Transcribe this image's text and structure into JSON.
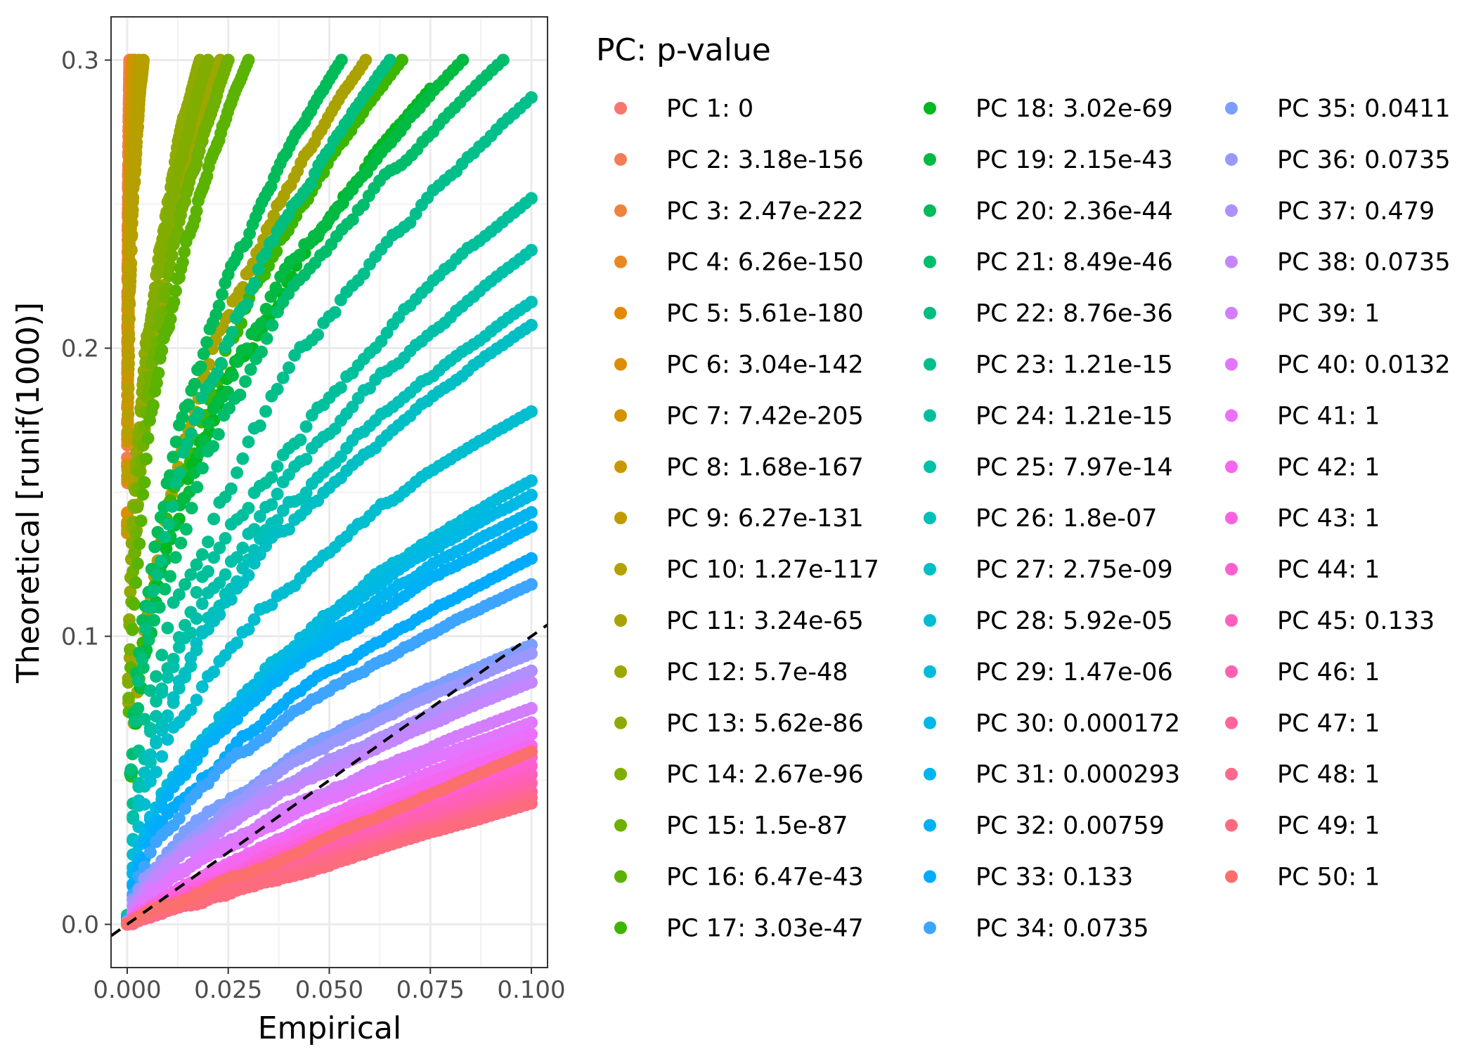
{
  "chart_data": {
    "type": "scatter",
    "xlabel": "Empirical",
    "ylabel": "Theoretical [runif(1000)]",
    "xlim": [
      -0.004,
      0.104
    ],
    "ylim": [
      -0.015,
      0.315
    ],
    "x_ticks": [
      0.0,
      0.025,
      0.05,
      0.075,
      0.1
    ],
    "x_tick_labels": [
      "0.000",
      "0.025",
      "0.050",
      "0.075",
      "0.100"
    ],
    "y_ticks": [
      0.0,
      0.1,
      0.2,
      0.3
    ],
    "y_tick_labels": [
      "0.0",
      "0.1",
      "0.2",
      "0.3"
    ],
    "grid": true,
    "reference_line": {
      "style": "dashed",
      "slope": 1,
      "intercept": 0,
      "color": "#000000"
    },
    "legend": {
      "title": "PC: p-value",
      "placement": "right"
    },
    "series": [
      {
        "name": "PC 1: 0",
        "color": "#F8766D",
        "end": [
          0.0006,
          0.3
        ],
        "curve": 0.18
      },
      {
        "name": "PC 2: 3.18e-156",
        "color": "#F47C56",
        "end": [
          0.0008,
          0.3
        ],
        "curve": 0.18
      },
      {
        "name": "PC 3: 2.47e-222",
        "color": "#EF823E",
        "end": [
          0.001,
          0.3
        ],
        "curve": 0.18
      },
      {
        "name": "PC 4: 6.26e-150",
        "color": "#E98720",
        "end": [
          0.0012,
          0.3
        ],
        "curve": 0.18
      },
      {
        "name": "PC 5: 5.61e-180",
        "color": "#E38900",
        "end": [
          0.0014,
          0.3
        ],
        "curve": 0.18
      },
      {
        "name": "PC 6: 3.04e-142",
        "color": "#DC8E00",
        "end": [
          0.0016,
          0.3
        ],
        "curve": 0.18
      },
      {
        "name": "PC 7: 7.42e-205",
        "color": "#D39200",
        "end": [
          0.0018,
          0.3
        ],
        "curve": 0.18
      },
      {
        "name": "PC 8: 1.68e-167",
        "color": "#CA9700",
        "end": [
          0.002,
          0.3
        ],
        "curve": 0.18
      },
      {
        "name": "PC 9: 6.27e-131",
        "color": "#C09B00",
        "end": [
          0.003,
          0.3
        ],
        "curve": 0.18
      },
      {
        "name": "PC 10: 1.27e-117",
        "color": "#B5A000",
        "end": [
          0.004,
          0.3
        ],
        "curve": 0.18
      },
      {
        "name": "PC 11: 3.24e-65",
        "color": "#AAA200",
        "end": [
          0.059,
          0.3
        ],
        "curve": 0.4
      },
      {
        "name": "PC 12: 5.7e-48",
        "color": "#9CA700",
        "end": [
          0.023,
          0.3
        ],
        "curve": 0.32
      },
      {
        "name": "PC 13: 5.62e-86",
        "color": "#8FAA00",
        "end": [
          0.018,
          0.3
        ],
        "curve": 0.3
      },
      {
        "name": "PC 14: 2.67e-96",
        "color": "#80AD00",
        "end": [
          0.02,
          0.3
        ],
        "curve": 0.3
      },
      {
        "name": "PC 15: 1.5e-87",
        "color": "#6FB000",
        "end": [
          0.025,
          0.3
        ],
        "curve": 0.32
      },
      {
        "name": "PC 16: 6.47e-43",
        "color": "#59B300",
        "end": [
          0.03,
          0.3
        ],
        "curve": 0.34
      },
      {
        "name": "PC 17: 3.03e-47",
        "color": "#3EB500",
        "end": [
          0.068,
          0.3
        ],
        "curve": 0.4
      },
      {
        "name": "PC 18: 3.02e-69",
        "color": "#00B81F",
        "end": [
          0.075,
          0.29
        ],
        "curve": 0.4
      },
      {
        "name": "PC 19: 2.15e-43",
        "color": "#00BA42",
        "end": [
          0.083,
          0.3
        ],
        "curve": 0.4
      },
      {
        "name": "PC 20: 2.36e-44",
        "color": "#00BB59",
        "end": [
          0.053,
          0.3
        ],
        "curve": 0.4
      },
      {
        "name": "PC 21: 8.49e-46",
        "color": "#00BD6C",
        "end": [
          0.093,
          0.3
        ],
        "curve": 0.4
      },
      {
        "name": "PC 22: 8.76e-36",
        "color": "#00BE7D",
        "end": [
          0.065,
          0.3
        ],
        "curve": 0.4
      },
      {
        "name": "PC 23: 1.21e-15",
        "color": "#00BF8D",
        "end": [
          0.1,
          0.287
        ],
        "curve": 0.45
      },
      {
        "name": "PC 24: 1.21e-15",
        "color": "#00C09C",
        "end": [
          0.1,
          0.252
        ],
        "curve": 0.45
      },
      {
        "name": "PC 25: 7.97e-14",
        "color": "#00C0AA",
        "end": [
          0.1,
          0.234
        ],
        "curve": 0.45
      },
      {
        "name": "PC 26: 1.8e-07",
        "color": "#00C0B8",
        "end": [
          0.1,
          0.216
        ],
        "curve": 0.45
      },
      {
        "name": "PC 27: 2.75e-09",
        "color": "#00BFC4",
        "end": [
          0.1,
          0.208
        ],
        "curve": 0.45
      },
      {
        "name": "PC 28: 5.92e-05",
        "color": "#00BDD0",
        "end": [
          0.1,
          0.178
        ],
        "curve": 0.45
      },
      {
        "name": "PC 29: 1.47e-06",
        "color": "#00BBDB",
        "end": [
          0.1,
          0.154
        ],
        "curve": 0.5
      },
      {
        "name": "PC 30: 0.000172",
        "color": "#00B8E5",
        "end": [
          0.1,
          0.149
        ],
        "curve": 0.5
      },
      {
        "name": "PC 31: 0.000293",
        "color": "#00B4EF",
        "end": [
          0.1,
          0.143
        ],
        "curve": 0.5
      },
      {
        "name": "PC 32: 0.00759",
        "color": "#00B0F6",
        "end": [
          0.1,
          0.138
        ],
        "curve": 0.5
      },
      {
        "name": "PC 33: 0.133",
        "color": "#00ABFD",
        "end": [
          0.1,
          0.127
        ],
        "curve": 0.55
      },
      {
        "name": "PC 34: 0.0735",
        "color": "#3DA5FF",
        "end": [
          0.1,
          0.118
        ],
        "curve": 0.55
      },
      {
        "name": "PC 35: 0.0411",
        "color": "#7B9FFF",
        "end": [
          0.1,
          0.097
        ],
        "curve": 0.6
      },
      {
        "name": "PC 36: 0.0735",
        "color": "#9A97FF",
        "end": [
          0.1,
          0.094
        ],
        "curve": 0.6
      },
      {
        "name": "PC 37: 0.479",
        "color": "#B08FFF",
        "end": [
          0.1,
          0.088
        ],
        "curve": 0.65
      },
      {
        "name": "PC 38: 0.0735",
        "color": "#C386FF",
        "end": [
          0.1,
          0.084
        ],
        "curve": 0.65
      },
      {
        "name": "PC 39: 1",
        "color": "#D47DFF",
        "end": [
          0.1,
          0.075
        ],
        "curve": 0.7
      },
      {
        "name": "PC 40: 0.0132",
        "color": "#E176FF",
        "end": [
          0.1,
          0.07
        ],
        "curve": 0.7
      },
      {
        "name": "PC 41: 1",
        "color": "#EB6FF9",
        "end": [
          0.1,
          0.066
        ],
        "curve": 0.8
      },
      {
        "name": "PC 42: 1",
        "color": "#F467EE",
        "end": [
          0.1,
          0.062
        ],
        "curve": 0.8
      },
      {
        "name": "PC 43: 1",
        "color": "#FA62E0",
        "end": [
          0.1,
          0.058
        ],
        "curve": 0.85
      },
      {
        "name": "PC 44: 1",
        "color": "#FE5FD0",
        "end": [
          0.1,
          0.055
        ],
        "curve": 0.85
      },
      {
        "name": "PC 45: 0.133",
        "color": "#FF5FBF",
        "end": [
          0.1,
          0.052
        ],
        "curve": 0.9
      },
      {
        "name": "PC 46: 1",
        "color": "#FF61AF",
        "end": [
          0.1,
          0.049
        ],
        "curve": 0.9
      },
      {
        "name": "PC 47: 1",
        "color": "#FF649F",
        "end": [
          0.1,
          0.046
        ],
        "curve": 0.95
      },
      {
        "name": "PC 48: 1",
        "color": "#FF688E",
        "end": [
          0.1,
          0.044
        ],
        "curve": 0.95
      },
      {
        "name": "PC 49: 1",
        "color": "#FD6C7E",
        "end": [
          0.1,
          0.042
        ],
        "curve": 1.0
      },
      {
        "name": "PC 50: 1",
        "color": "#FB6F6C",
        "end": [
          0.1,
          0.06
        ],
        "curve": 1.0
      }
    ]
  }
}
